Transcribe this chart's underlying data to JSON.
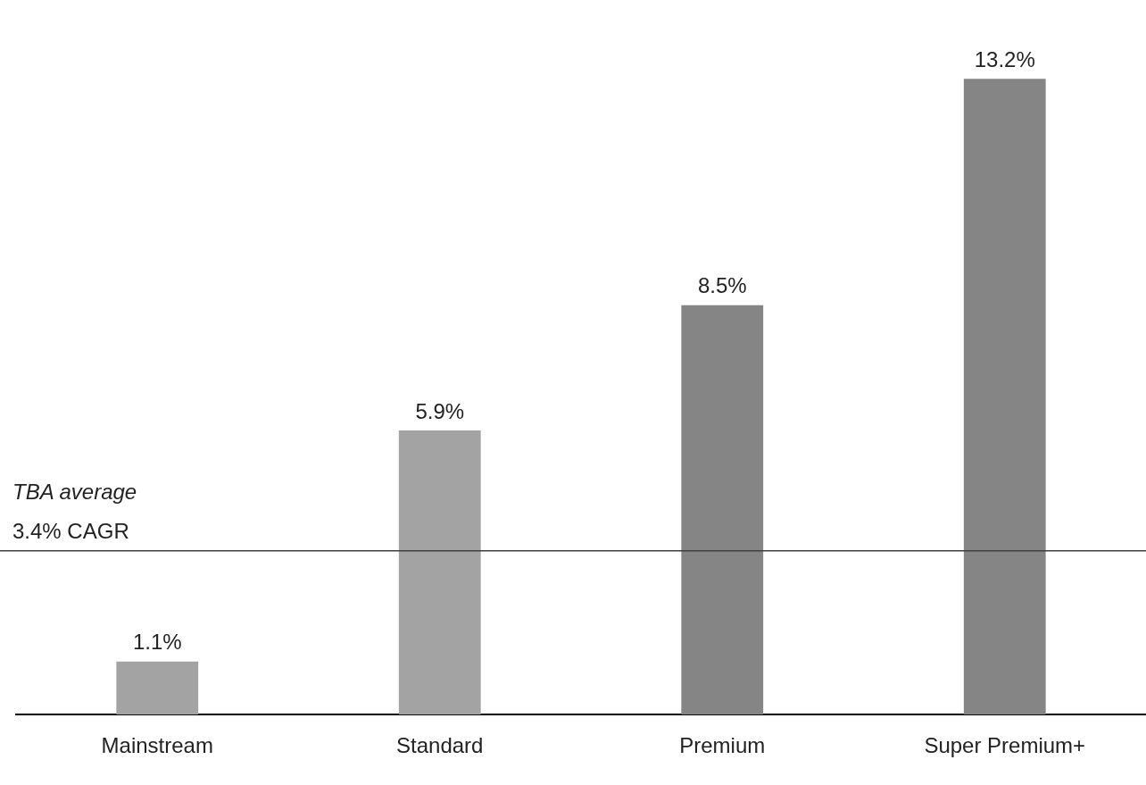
{
  "chart_data": {
    "type": "bar",
    "categories": [
      "Mainstream",
      "Standard",
      "Premium",
      "Super Premium+"
    ],
    "values": [
      1.1,
      5.9,
      8.5,
      13.2
    ],
    "colors": [
      "#a3a3a3",
      "#a3a3a3",
      "#858585",
      "#858585"
    ],
    "value_labels": [
      "1.1%",
      "5.9%",
      "8.5%",
      "13.2%"
    ],
    "ref_lines": [
      {
        "axis": "y",
        "value": 3.4,
        "label": "TBA average\n3.4% CAGR",
        "color": "#404040"
      }
    ],
    "grid": false,
    "legend": false,
    "tick_labels": "x"
  }
}
